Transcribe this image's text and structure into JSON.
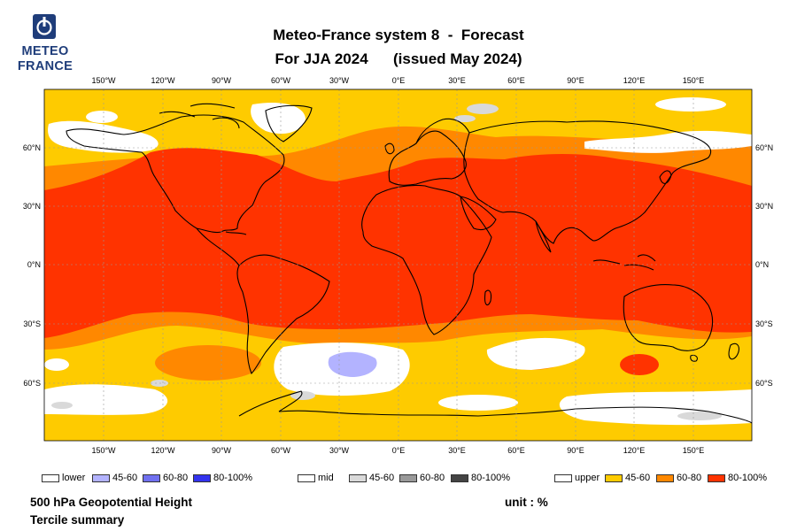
{
  "header": {
    "title_line1": "Meteo-France system 8  -  Forecast",
    "title_line2": "For JJA 2024      (issued May 2024)"
  },
  "logo": {
    "line1": "METEO",
    "line2": "FRANCE",
    "color": "#1f3d7a"
  },
  "map": {
    "projection": "equirectangular",
    "lon_labels": [
      "150°W",
      "120°W",
      "90°W",
      "60°W",
      "30°W",
      "0°E",
      "30°E",
      "60°E",
      "90°E",
      "120°E",
      "150°E"
    ],
    "lat_labels": [
      "60°N",
      "30°N",
      "0°N",
      "30°S",
      "60°S"
    ],
    "colors": {
      "white": "#ffffff",
      "yellow": "#fecb00",
      "orange": "#ff8800",
      "red": "#ff3300",
      "lightblue": "#b3b3ff",
      "lightgrey": "#d9d9d9"
    }
  },
  "legend": {
    "lower": {
      "label": "lower",
      "bins": [
        "45-60",
        "60-80",
        "80-100%"
      ],
      "colors": [
        "#b3b3ff",
        "#7070f0",
        "#3333ee"
      ]
    },
    "mid": {
      "label": "mid",
      "bins": [
        "45-60",
        "60-80",
        "80-100%"
      ],
      "colors": [
        "#d9d9d9",
        "#999999",
        "#444444"
      ]
    },
    "upper": {
      "label": "upper",
      "bins": [
        "45-60",
        "60-80",
        "80-100%"
      ],
      "colors": [
        "#fecb00",
        "#ff8800",
        "#ff3300"
      ]
    }
  },
  "footer": {
    "variable": "500 hPa Geopotential Height",
    "summary": "Tercile summary",
    "unit": "unit : %"
  }
}
